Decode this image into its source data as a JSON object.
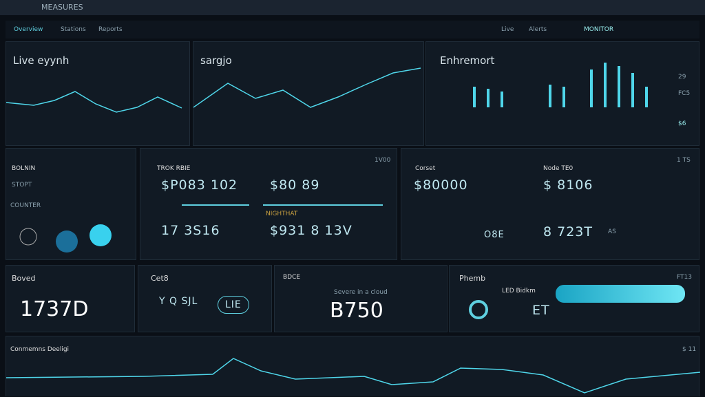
{
  "header": {
    "title": "MEASURES"
  },
  "nav": {
    "items": [
      "Overview",
      "Stations",
      "Reports"
    ],
    "right": [
      "Live",
      "Alerts",
      "MONITOR"
    ]
  },
  "row1": [
    {
      "title": "Live eyynh"
    },
    {
      "title": "sargjo"
    },
    {
      "title": "Enhremort",
      "side": [
        "29",
        "FC5",
        "$6"
      ]
    }
  ],
  "row2": [
    {
      "title": "BOLNIN",
      "sub": "STOPT",
      "label": "COUNTER"
    },
    {
      "title": "TROK RBIE",
      "corner": "1V00",
      "metrics": [
        "$P083 102",
        "$80 89",
        "17 3S16",
        "$931 8 13V"
      ],
      "caption": "NIGHTHAT"
    },
    {
      "title": "Corset",
      "corner": "1 TS",
      "metrics": [
        "$80000",
        "O8E",
        "$ 8106",
        "8 723T"
      ],
      "sub": "Node TE0",
      "tag": "AS"
    }
  ],
  "row3": [
    {
      "title": "Boved",
      "value": "1737D"
    },
    {
      "title": "Cet8",
      "value": "Y Q SJL",
      "tag": "LIE"
    },
    {
      "title": "BDCE",
      "value": "B750",
      "sub": "Severe in a cloud"
    },
    {
      "title": "Phemb",
      "corner": "FT13",
      "label": "LED Bidkm",
      "value": "ET"
    }
  ],
  "footer": {
    "title": "Conmemns Deeligi",
    "corner": "$ 11"
  }
}
